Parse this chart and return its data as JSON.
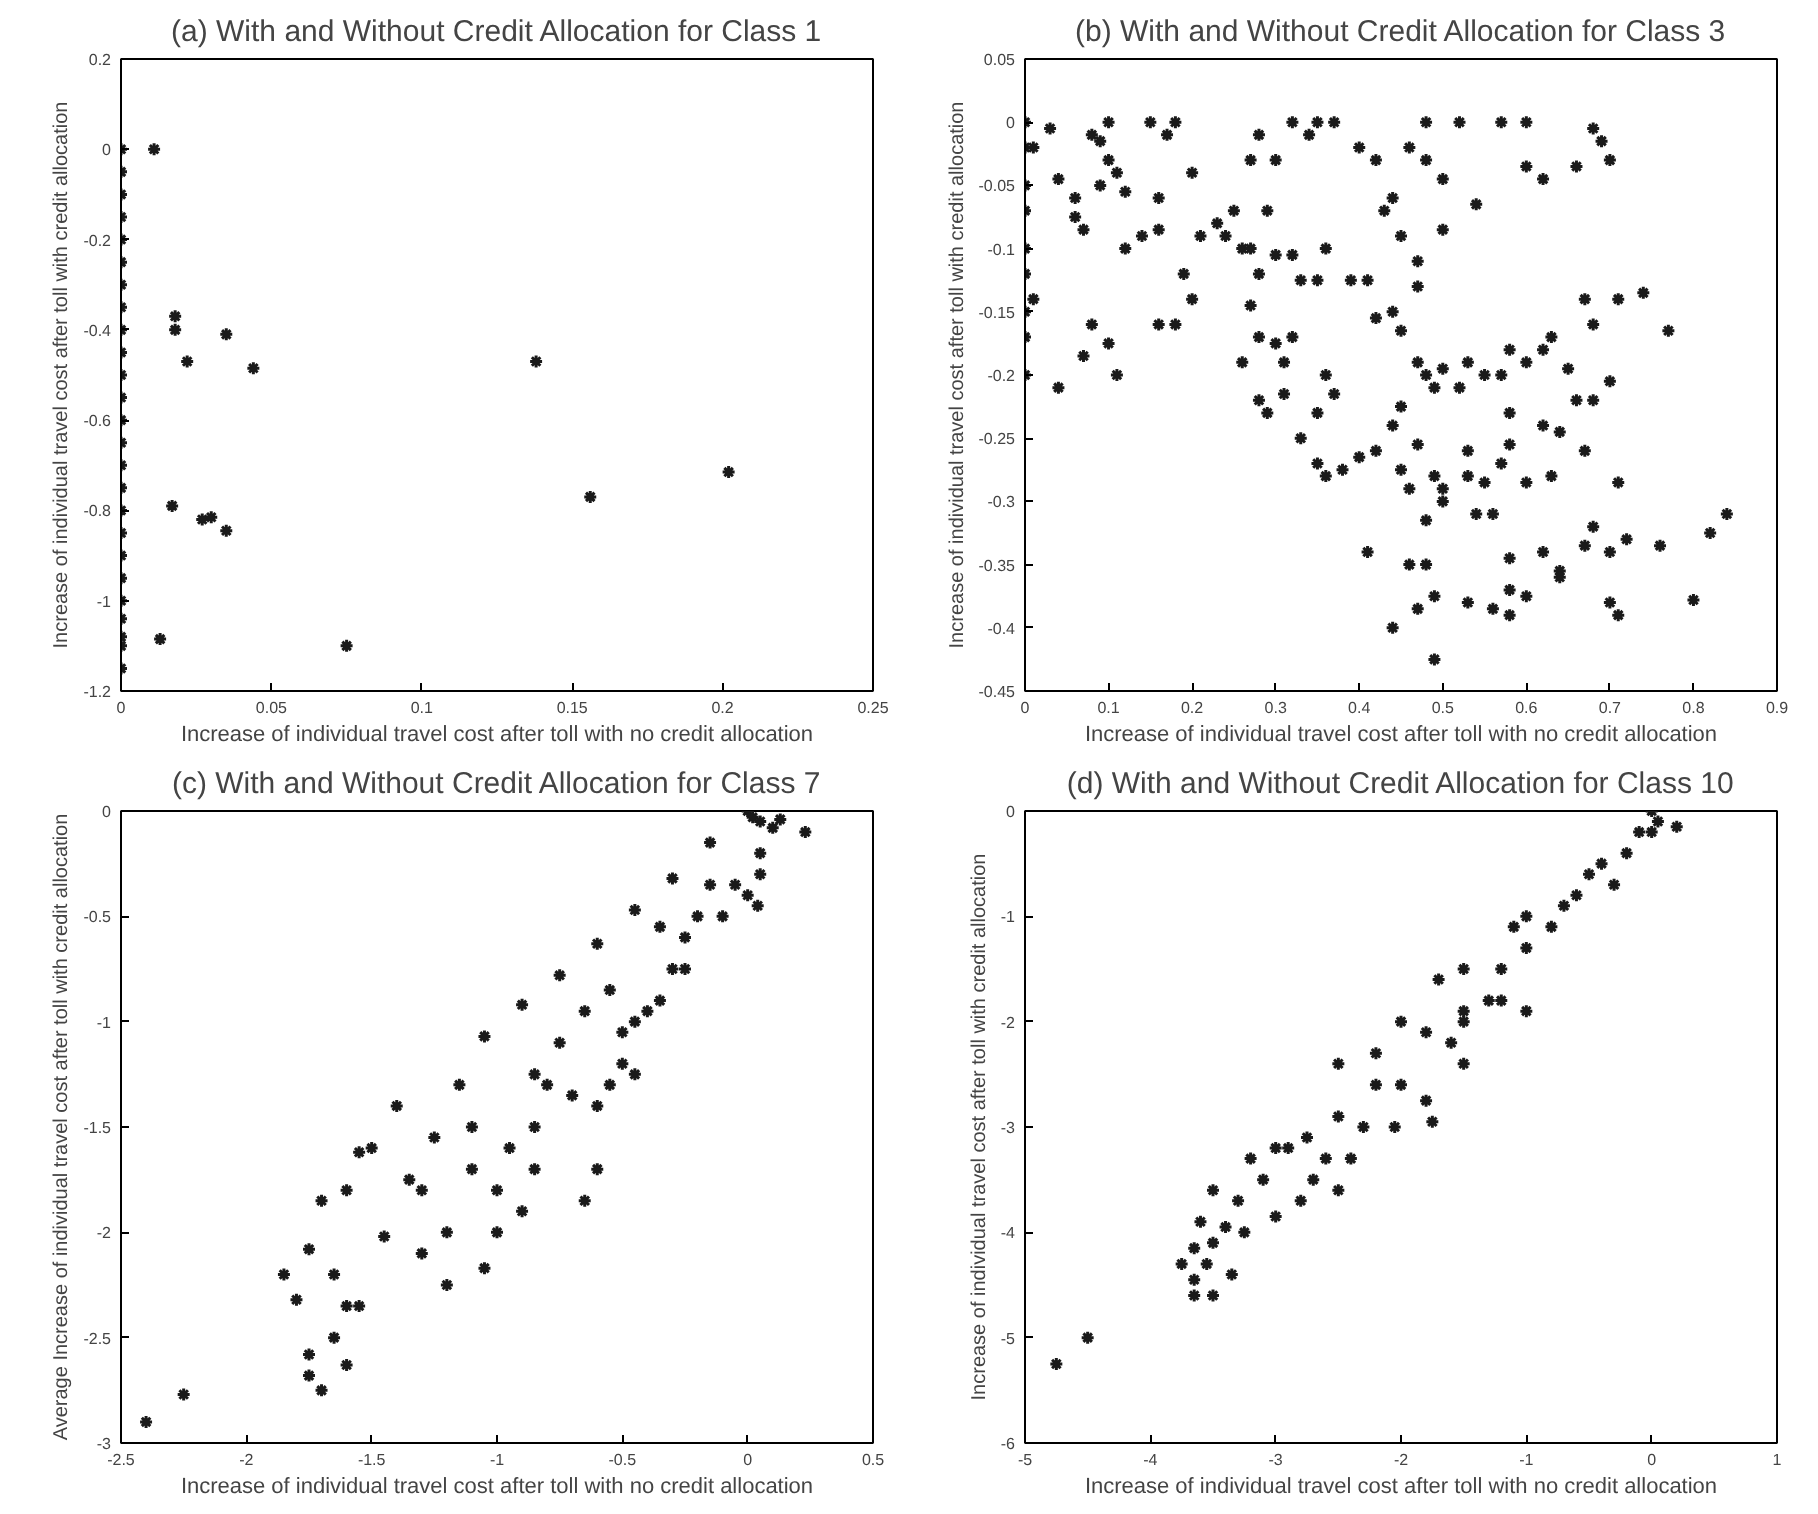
{
  "chart_data": [
    {
      "type": "scatter",
      "title": "(a) With and Without Credit Allocation for Class 1",
      "xlabel": "Increase of individual travel cost after toll with no credit allocation",
      "ylabel": "Increase of individual travel cost after toll with credit allocation",
      "marker": "cross",
      "grid": false,
      "xlim": [
        0,
        0.25
      ],
      "xticks": [
        0,
        0.05,
        0.1,
        0.15,
        0.2,
        0.25
      ],
      "ylim": [
        -1.2,
        0.2
      ],
      "yticks": [
        -1.2,
        -1,
        -0.8,
        -0.6,
        -0.4,
        -0.2,
        0,
        0.2
      ],
      "series": [
        {
          "color": "#1a1a1a",
          "x": [
            0,
            0,
            0,
            0,
            0,
            0,
            0,
            0,
            0,
            0,
            0,
            0,
            0,
            0,
            0,
            0,
            0,
            0,
            0,
            0,
            0,
            0,
            0,
            0,
            0,
            0.011,
            0.018,
            0.018,
            0.022,
            0.035,
            0.044,
            0.138,
            0.156,
            0.202,
            0.017,
            0.027,
            0.03,
            0.035,
            0.013,
            0.075
          ],
          "values": [
            0,
            -0.05,
            -0.1,
            -0.15,
            -0.2,
            -0.25,
            -0.3,
            -0.35,
            -0.4,
            -0.45,
            -0.5,
            -0.55,
            -0.6,
            -0.65,
            -0.7,
            -0.75,
            -0.8,
            -0.85,
            -0.9,
            -0.95,
            -1.0,
            -1.04,
            -1.08,
            -1.1,
            -1.15,
            0,
            -0.37,
            -0.4,
            -0.47,
            -0.41,
            -0.485,
            -0.47,
            -0.77,
            -0.715,
            -0.79,
            -0.82,
            -0.815,
            -0.845,
            -1.085,
            -1.1
          ]
        }
      ]
    },
    {
      "type": "scatter",
      "title": "(b) With and Without Credit Allocation for Class 3",
      "xlabel": "Increase of individual travel cost after toll with no credit allocation",
      "ylabel": "Increase of individual travel cost after toll with credit allocation",
      "marker": "cross",
      "grid": false,
      "xlim": [
        0,
        0.9
      ],
      "xticks": [
        0,
        0.1,
        0.2,
        0.3,
        0.4,
        0.5,
        0.6,
        0.7,
        0.8,
        0.9
      ],
      "ylim": [
        -0.45,
        0.05
      ],
      "yticks": [
        -0.45,
        -0.4,
        -0.35,
        -0.3,
        -0.25,
        -0.2,
        -0.15,
        -0.1,
        -0.05,
        0,
        0.05
      ],
      "series": [
        {
          "color": "#1a1a1a",
          "x": [
            0,
            0,
            0,
            0,
            0,
            0,
            0,
            0,
            0,
            0.01,
            0.01,
            0.03,
            0.04,
            0.04,
            0.06,
            0.06,
            0.07,
            0.08,
            0.09,
            0.1,
            0.1,
            0.09,
            0.11,
            0.12,
            0.12,
            0.14,
            0.15,
            0.17,
            0.18,
            0.16,
            0.16,
            0.2,
            0.2,
            0.19,
            0.07,
            0.08,
            0.1,
            0.11,
            0.16,
            0.18,
            0.21,
            0.23,
            0.25,
            0.24,
            0.26,
            0.27,
            0.28,
            0.27,
            0.28,
            0.3,
            0.32,
            0.34,
            0.35,
            0.37,
            0.29,
            0.3,
            0.32,
            0.33,
            0.35,
            0.36,
            0.27,
            0.28,
            0.3,
            0.31,
            0.32,
            0.26,
            0.28,
            0.29,
            0.31,
            0.33,
            0.35,
            0.36,
            0.37,
            0.35,
            0.36,
            0.38,
            0.4,
            0.4,
            0.42,
            0.43,
            0.44,
            0.45,
            0.46,
            0.48,
            0.48,
            0.52,
            0.57,
            0.6,
            0.6,
            0.62,
            0.66,
            0.68,
            0.69,
            0.7,
            0.5,
            0.54,
            0.5,
            0.47,
            0.47,
            0.41,
            0.39,
            0.42,
            0.44,
            0.45,
            0.47,
            0.48,
            0.5,
            0.49,
            0.52,
            0.53,
            0.55,
            0.57,
            0.58,
            0.6,
            0.62,
            0.63,
            0.65,
            0.67,
            0.68,
            0.7,
            0.71,
            0.74,
            0.77,
            0.42,
            0.44,
            0.45,
            0.46,
            0.47,
            0.45,
            0.48,
            0.49,
            0.5,
            0.5,
            0.53,
            0.53,
            0.54,
            0.55,
            0.56,
            0.57,
            0.58,
            0.58,
            0.6,
            0.62,
            0.63,
            0.64,
            0.66,
            0.67,
            0.68,
            0.71,
            0.41,
            0.44,
            0.46,
            0.47,
            0.48,
            0.49,
            0.49,
            0.53,
            0.56,
            0.58,
            0.58,
            0.58,
            0.6,
            0.62,
            0.64,
            0.64,
            0.67,
            0.68,
            0.7,
            0.7,
            0.71,
            0.72,
            0.76,
            0.8,
            0.82,
            0.84
          ],
          "values": [
            0,
            -0.02,
            -0.05,
            -0.07,
            -0.1,
            -0.12,
            -0.15,
            -0.17,
            -0.2,
            -0.14,
            -0.02,
            -0.005,
            -0.045,
            -0.21,
            -0.06,
            -0.075,
            -0.085,
            -0.01,
            -0.015,
            -0.03,
            0,
            -0.05,
            -0.04,
            -0.055,
            -0.1,
            -0.09,
            0,
            -0.01,
            0,
            -0.06,
            -0.085,
            -0.04,
            -0.14,
            -0.12,
            -0.185,
            -0.16,
            -0.175,
            -0.2,
            -0.16,
            -0.16,
            -0.09,
            -0.08,
            -0.07,
            -0.09,
            -0.1,
            -0.1,
            -0.12,
            -0.03,
            -0.01,
            -0.03,
            0,
            -0.01,
            0,
            0,
            -0.07,
            -0.105,
            -0.105,
            -0.125,
            -0.125,
            -0.1,
            -0.145,
            -0.17,
            -0.175,
            -0.19,
            -0.17,
            -0.19,
            -0.22,
            -0.23,
            -0.215,
            -0.25,
            -0.23,
            -0.2,
            -0.215,
            -0.27,
            -0.28,
            -0.275,
            -0.265,
            -0.02,
            -0.03,
            -0.07,
            -0.06,
            -0.09,
            -0.02,
            -0.03,
            0,
            0,
            0,
            0,
            -0.035,
            -0.045,
            -0.035,
            -0.005,
            -0.015,
            -0.03,
            -0.045,
            -0.065,
            -0.085,
            -0.11,
            -0.13,
            -0.125,
            -0.125,
            -0.155,
            -0.15,
            -0.165,
            -0.19,
            -0.2,
            -0.195,
            -0.21,
            -0.21,
            -0.19,
            -0.2,
            -0.2,
            -0.18,
            -0.19,
            -0.18,
            -0.17,
            -0.195,
            -0.14,
            -0.16,
            -0.205,
            -0.14,
            -0.135,
            -0.165,
            -0.26,
            -0.24,
            -0.225,
            -0.29,
            -0.255,
            -0.275,
            -0.315,
            -0.28,
            -0.29,
            -0.3,
            -0.26,
            -0.28,
            -0.31,
            -0.285,
            -0.31,
            -0.27,
            -0.255,
            -0.23,
            -0.285,
            -0.24,
            -0.28,
            -0.245,
            -0.22,
            -0.26,
            -0.22,
            -0.285,
            -0.34,
            -0.4,
            -0.35,
            -0.385,
            -0.35,
            -0.375,
            -0.425,
            -0.38,
            -0.385,
            -0.37,
            -0.345,
            -0.39,
            -0.375,
            -0.34,
            -0.355,
            -0.36,
            -0.335,
            -0.32,
            -0.34,
            -0.38,
            -0.39,
            -0.33,
            -0.335,
            -0.378,
            -0.325,
            -0.31
          ]
        }
      ]
    },
    {
      "type": "scatter",
      "title": "(c) With and Without Credit Allocation for Class 7",
      "xlabel": "Increase of individual travel cost after toll with no credit allocation",
      "ylabel": "Average Increase of individual travel cost after toll with credit allocation",
      "marker": "cross",
      "grid": false,
      "xlim": [
        -2.5,
        0.5
      ],
      "xticks": [
        -2.5,
        -2,
        -1.5,
        -1,
        -0.5,
        0,
        0.5
      ],
      "ylim": [
        -3,
        0
      ],
      "yticks": [
        -3,
        -2.5,
        -2,
        -1.5,
        -1,
        -0.5,
        0
      ],
      "series": [
        {
          "color": "#1a1a1a",
          "x": [
            -1.05,
            -0.9,
            -0.75,
            -0.6,
            -0.45,
            -0.3,
            -0.15,
            0,
            0.02,
            0.05,
            0.1,
            0.13,
            0.23,
            0.05,
            0.05,
            0.04,
            0,
            -0.05,
            -0.1,
            -0.2,
            -0.25,
            -0.3,
            -0.25,
            -0.35,
            -0.4,
            -0.45,
            -0.5,
            -0.5,
            -0.55,
            -0.45,
            -0.6,
            -0.6,
            -0.65,
            -0.7,
            -0.75,
            -0.8,
            -0.85,
            -0.85,
            -0.9,
            -0.95,
            -1.0,
            -1.0,
            -1.05,
            -1.1,
            -1.1,
            -1.15,
            -1.2,
            -1.25,
            -1.3,
            -1.3,
            -1.2,
            -1.35,
            -1.4,
            -1.45,
            -1.5,
            -1.55,
            -1.6,
            -1.65,
            -1.6,
            -1.55,
            -1.6,
            -1.65,
            -1.7,
            -1.75,
            -1.7,
            -1.75,
            -1.8,
            -1.85,
            -1.75,
            -2.25,
            -2.4,
            -0.65,
            -0.55,
            -0.85,
            -0.35,
            -0.15
          ],
          "values": [
            -1.07,
            -0.92,
            -0.78,
            -0.63,
            -0.47,
            -0.32,
            -0.15,
            0,
            -0.03,
            -0.05,
            -0.08,
            -0.04,
            -0.1,
            -0.2,
            -0.3,
            -0.45,
            -0.4,
            -0.35,
            -0.5,
            -0.5,
            -0.6,
            -0.75,
            -0.75,
            -0.9,
            -0.95,
            -1.0,
            -1.05,
            -1.2,
            -1.3,
            -1.25,
            -1.4,
            -1.7,
            -1.85,
            -1.35,
            -1.1,
            -1.3,
            -1.5,
            -1.7,
            -1.9,
            -1.6,
            -1.8,
            -2.0,
            -2.17,
            -1.5,
            -1.7,
            -1.3,
            -2.0,
            -1.55,
            -1.8,
            -2.1,
            -2.25,
            -1.75,
            -1.4,
            -2.02,
            -1.6,
            -1.62,
            -1.8,
            -2.2,
            -2.35,
            -2.35,
            -2.63,
            -2.5,
            -2.75,
            -2.08,
            -1.85,
            -2.58,
            -2.32,
            -2.2,
            -2.68,
            -2.77,
            -2.9,
            -0.95,
            -0.85,
            -1.25,
            -0.55,
            -0.35
          ]
        }
      ]
    },
    {
      "type": "scatter",
      "title": "(d) With and Without Credit Allocation for Class 10",
      "xlabel": "Increase of individual travel cost after toll with no credit allocation",
      "ylabel": "Increase of individual travel cost after toll with credit allocation",
      "marker": "cross",
      "grid": false,
      "xlim": [
        -5,
        1
      ],
      "xticks": [
        -5,
        -4,
        -3,
        -2,
        -1,
        0,
        1
      ],
      "ylim": [
        -6,
        0
      ],
      "yticks": [
        -6,
        -5,
        -4,
        -3,
        -2,
        -1,
        0
      ],
      "series": [
        {
          "color": "#1a1a1a",
          "x": [
            -0.1,
            -0.5,
            -1,
            -1.5,
            -2,
            -2.5,
            -3,
            0,
            0.05,
            0.2,
            0,
            -0.2,
            -0.3,
            -0.7,
            -0.8,
            -1,
            -1.2,
            -1.3,
            -1.5,
            -1.5,
            -1.6,
            -1.7,
            -1.8,
            -1.8,
            -1.75,
            -2.0,
            -2.05,
            -2.2,
            -2.2,
            -2.3,
            -2.4,
            -2.5,
            -2.6,
            -2.7,
            -2.75,
            -2.8,
            -2.9,
            -3.0,
            -3.1,
            -3.2,
            -3.3,
            -3.25,
            -3.4,
            -3.35,
            -3.5,
            -3.5,
            -3.55,
            -3.5,
            -3.6,
            -3.65,
            -3.65,
            -3.75,
            -3.65,
            -4.5,
            -4.75,
            -1.0,
            -1.2,
            -0.6,
            -0.4,
            -1.5,
            -2.5,
            -1.1
          ],
          "values": [
            -0.2,
            -0.6,
            -1.0,
            -1.5,
            -2,
            -2.4,
            -3.2,
            0,
            -0.1,
            -0.15,
            -0.2,
            -0.4,
            -0.7,
            -0.9,
            -1.1,
            -1.3,
            -1.5,
            -1.8,
            -2.0,
            -2.4,
            -2.2,
            -1.6,
            -2.1,
            -2.75,
            -2.95,
            -2.6,
            -3.0,
            -2.6,
            -2.3,
            -3.0,
            -3.3,
            -3.6,
            -3.3,
            -3.5,
            -3.1,
            -3.7,
            -3.2,
            -3.85,
            -3.5,
            -3.3,
            -3.7,
            -4.0,
            -3.95,
            -4.4,
            -3.6,
            -4.1,
            -4.3,
            -4.6,
            -3.9,
            -4.15,
            -4.45,
            -4.3,
            -4.6,
            -5.0,
            -5.25,
            -1.9,
            -1.8,
            -0.8,
            -0.5,
            -1.9,
            -2.9,
            -1.1
          ]
        }
      ]
    }
  ]
}
